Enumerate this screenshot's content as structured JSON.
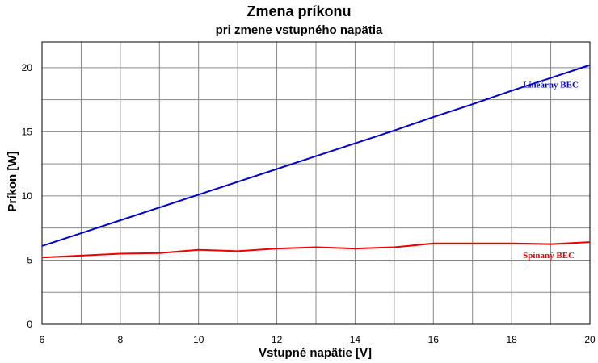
{
  "chart_data": {
    "type": "line",
    "title": "Zmena príkonu",
    "subtitle": "pri zmene vstupného napätia",
    "xlabel": "Vstupné napätie [V]",
    "ylabel": "Príkon [W]",
    "xlim": [
      6,
      20
    ],
    "ylim": [
      0,
      22
    ],
    "xticks": [
      6,
      8,
      10,
      12,
      14,
      16,
      18,
      20
    ],
    "yticks": [
      0,
      5,
      10,
      15,
      20
    ],
    "grid": true,
    "x": [
      6,
      7,
      8,
      9,
      10,
      11,
      12,
      13,
      14,
      15,
      16,
      17,
      18,
      19,
      20
    ],
    "series": [
      {
        "name": "Lineárny BEC",
        "color": "#0000cc",
        "values": [
          6.1,
          7.1,
          8.1,
          9.1,
          10.1,
          11.1,
          12.1,
          13.1,
          14.1,
          15.1,
          16.15,
          17.15,
          18.2,
          19.2,
          20.2
        ]
      },
      {
        "name": "Spínaný BEC",
        "color": "#ee0000",
        "values": [
          5.2,
          5.35,
          5.5,
          5.55,
          5.8,
          5.7,
          5.9,
          6.0,
          5.9,
          6.0,
          6.3,
          6.3,
          6.3,
          6.25,
          6.4
        ]
      }
    ]
  }
}
